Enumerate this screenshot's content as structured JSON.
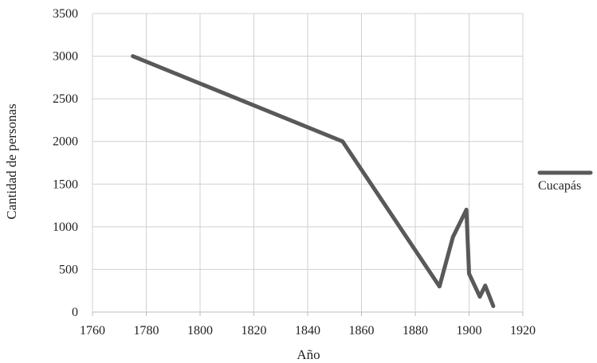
{
  "chart_data": {
    "type": "line",
    "title": "",
    "xlabel": "Año",
    "ylabel": "Cantidad de personas",
    "xlim": [
      1760,
      1920
    ],
    "ylim": [
      0,
      3500
    ],
    "xticks": [
      1760,
      1780,
      1800,
      1820,
      1840,
      1860,
      1880,
      1900,
      1920
    ],
    "yticks": [
      0,
      500,
      1000,
      1500,
      2000,
      2500,
      3000,
      3500
    ],
    "grid": true,
    "legend_position": "right",
    "series": [
      {
        "name": "Cucapás",
        "color": "#595959",
        "x": [
          1775,
          1853,
          1889,
          1894,
          1899,
          1900,
          1904,
          1906,
          1909
        ],
        "y": [
          3000,
          2000,
          300,
          880,
          1200,
          450,
          180,
          310,
          70
        ]
      }
    ]
  }
}
